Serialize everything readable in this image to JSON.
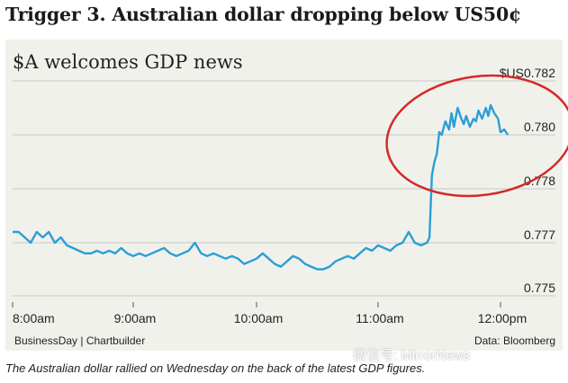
{
  "page": {
    "heading": "Trigger 3. Australian dollar dropping below US50¢",
    "caption": "The Australian dollar rallied on Wednesday on the back of the latest GDP figures.",
    "source_left": "BusinessDay | Chartbuilder",
    "source_right": "Data: Bloomberg",
    "watermark": "微信号: MirrorNews"
  },
  "chart_data": {
    "type": "line",
    "title": "$A welcomes GDP news",
    "unit_label": "$US",
    "xlabel": "",
    "ylabel": "",
    "x_ticks": [
      "8:00am",
      "9:00am",
      "10:00am",
      "11:00am",
      "12:00pm"
    ],
    "y_ticks": [
      "0.775",
      "0.777",
      "0.778",
      "0.780",
      "0.782"
    ],
    "y_tick_values": [
      0.775,
      0.777,
      0.778,
      0.78,
      0.782
    ],
    "xlim": [
      8.0,
      12.25
    ],
    "ylim": [
      0.775,
      0.782
    ],
    "grid": true,
    "annotation": "red ellipse circling the post-GDP rally",
    "series": [
      {
        "color": "#2a9fd6",
        "x": [
          8.0,
          8.05,
          8.1,
          8.15,
          8.2,
          8.25,
          8.3,
          8.35,
          8.4,
          8.45,
          8.5,
          8.55,
          8.6,
          8.65,
          8.7,
          8.75,
          8.8,
          8.85,
          8.9,
          8.95,
          9.0,
          9.05,
          9.1,
          9.15,
          9.2,
          9.25,
          9.3,
          9.35,
          9.4,
          9.45,
          9.5,
          9.55,
          9.6,
          9.65,
          9.7,
          9.75,
          9.8,
          9.85,
          9.9,
          9.95,
          10.0,
          10.05,
          10.1,
          10.15,
          10.2,
          10.25,
          10.3,
          10.35,
          10.4,
          10.45,
          10.5,
          10.55,
          10.6,
          10.65,
          10.7,
          10.75,
          10.8,
          10.85,
          10.9,
          10.95,
          11.0,
          11.05,
          11.1,
          11.15,
          11.2,
          11.25,
          11.3,
          11.35,
          11.4,
          11.42,
          11.44,
          11.46,
          11.48,
          11.5,
          11.52,
          11.55,
          11.58,
          11.6,
          11.62,
          11.65,
          11.68,
          11.7,
          11.72,
          11.75,
          11.78,
          11.8,
          11.82,
          11.85,
          11.88,
          11.9,
          11.92,
          11.95,
          11.98,
          12.0,
          12.03,
          12.06
        ],
        "y": [
          0.7772,
          0.7772,
          0.7771,
          0.777,
          0.7772,
          0.7771,
          0.7772,
          0.777,
          0.7771,
          0.7769,
          0.7768,
          0.7767,
          0.7766,
          0.7766,
          0.7767,
          0.7766,
          0.7767,
          0.7766,
          0.7768,
          0.7766,
          0.7765,
          0.7766,
          0.7765,
          0.7766,
          0.7767,
          0.7768,
          0.7766,
          0.7765,
          0.7766,
          0.7767,
          0.777,
          0.7766,
          0.7765,
          0.7766,
          0.7765,
          0.7764,
          0.7765,
          0.7764,
          0.7762,
          0.7763,
          0.7764,
          0.7766,
          0.7764,
          0.7762,
          0.7761,
          0.7763,
          0.7765,
          0.7764,
          0.7762,
          0.7761,
          0.776,
          0.776,
          0.7761,
          0.7763,
          0.7764,
          0.7765,
          0.7764,
          0.7766,
          0.7768,
          0.7767,
          0.7769,
          0.7768,
          0.7767,
          0.7769,
          0.777,
          0.7772,
          0.777,
          0.7769,
          0.777,
          0.7771,
          0.7785,
          0.779,
          0.7793,
          0.7801,
          0.78,
          0.7805,
          0.7802,
          0.7808,
          0.7803,
          0.781,
          0.7806,
          0.7804,
          0.7807,
          0.7803,
          0.7806,
          0.7805,
          0.7809,
          0.7806,
          0.781,
          0.7807,
          0.7811,
          0.7808,
          0.7806,
          0.7801,
          0.7802,
          0.78
        ]
      }
    ]
  }
}
